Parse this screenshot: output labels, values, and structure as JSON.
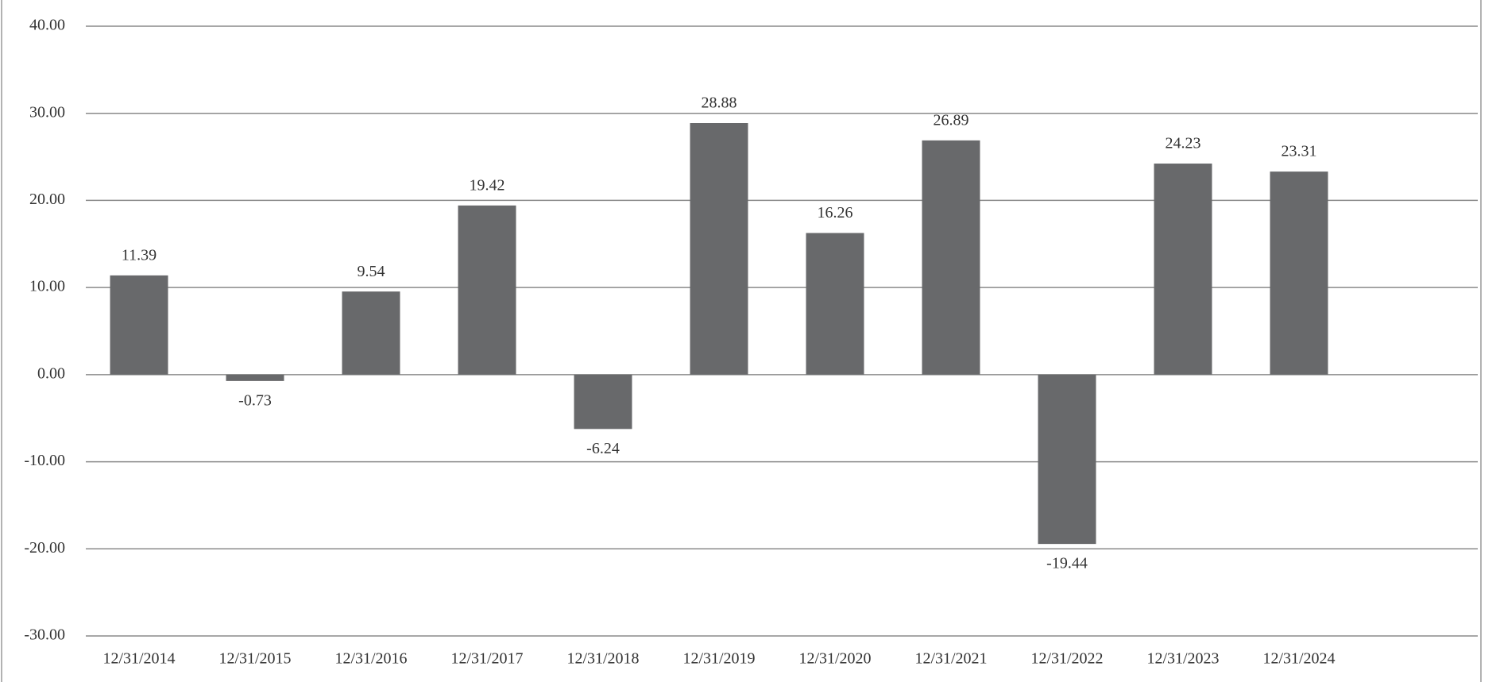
{
  "chart_data": {
    "type": "bar",
    "categories": [
      "12/31/2014",
      "12/31/2015",
      "12/31/2016",
      "12/31/2017",
      "12/31/2018",
      "12/31/2019",
      "12/31/2020",
      "12/31/2021",
      "12/31/2022",
      "12/31/2023",
      "12/31/2024",
      null
    ],
    "values": [
      11.39,
      -0.73,
      9.54,
      19.42,
      -6.24,
      28.88,
      16.26,
      26.89,
      -19.44,
      24.23,
      23.31,
      null
    ],
    "color": "#68696b",
    "ylim": [
      -30,
      40
    ],
    "yticks": [
      {
        "value": -30,
        "label": "-30.00"
      },
      {
        "value": -20,
        "label": "-20.00"
      },
      {
        "value": -10,
        "label": "-10.00"
      },
      {
        "value": 0,
        "label": "0.00"
      },
      {
        "value": 10,
        "label": "10.00"
      },
      {
        "value": 20,
        "label": "20.00"
      },
      {
        "value": 30,
        "label": "30.00"
      },
      {
        "value": 40,
        "label": "40.00"
      }
    ],
    "grid": true
  }
}
